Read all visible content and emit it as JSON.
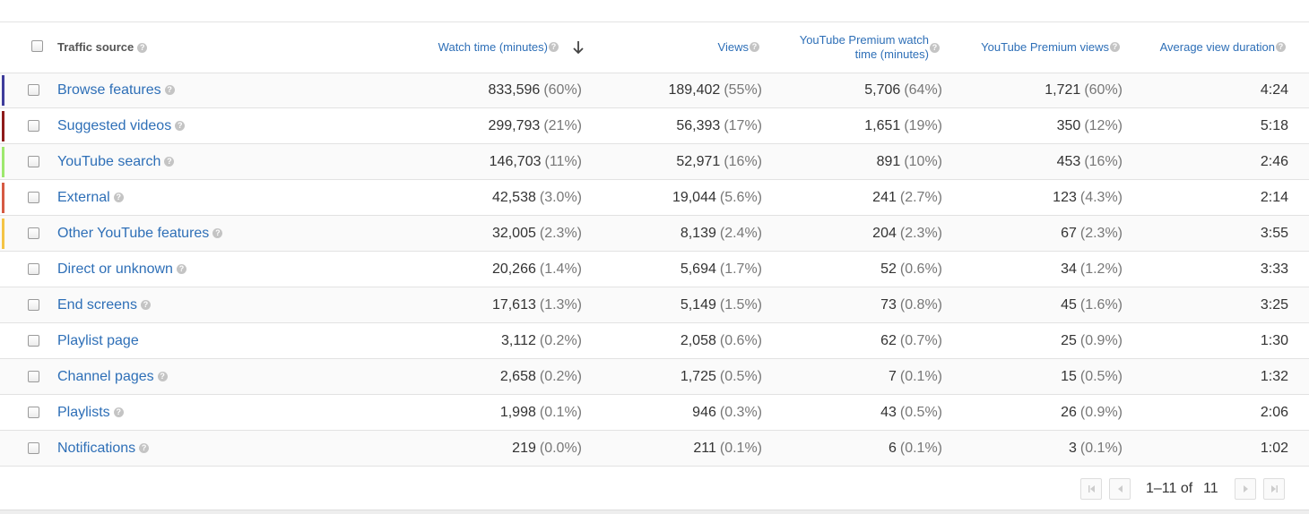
{
  "table": {
    "headers": {
      "source": "Traffic source",
      "columns": [
        [
          "Watch time (minutes)"
        ],
        [
          "Views"
        ],
        [
          "YouTube Premium watch",
          "time (minutes)"
        ],
        [
          "YouTube Premium views"
        ],
        [
          "Average view duration"
        ]
      ]
    },
    "rows": [
      {
        "source": "Browse features",
        "color": "#3e3c9b",
        "help": true,
        "cells": [
          [
            "833,596",
            "(60%)"
          ],
          [
            "189,402",
            "(55%)"
          ],
          [
            "5,706",
            "(64%)"
          ],
          [
            "1,721",
            "(60%)"
          ],
          [
            "4:24"
          ]
        ]
      },
      {
        "source": "Suggested videos",
        "color": "#8e1b1b",
        "help": true,
        "cells": [
          [
            "299,793",
            "(21%)"
          ],
          [
            "56,393",
            "(17%)"
          ],
          [
            "1,651",
            "(19%)"
          ],
          [
            "350",
            "(12%)"
          ],
          [
            "5:18"
          ]
        ]
      },
      {
        "source": "YouTube search",
        "color": "#9ee86e",
        "help": true,
        "cells": [
          [
            "146,703",
            "(11%)"
          ],
          [
            "52,971",
            "(16%)"
          ],
          [
            "891",
            "(10%)"
          ],
          [
            "453",
            "(16%)"
          ],
          [
            "2:46"
          ]
        ]
      },
      {
        "source": "External",
        "color": "#d65a43",
        "help": true,
        "cells": [
          [
            "42,538",
            "(3.0%)"
          ],
          [
            "19,044",
            "(5.6%)"
          ],
          [
            "241",
            "(2.7%)"
          ],
          [
            "123",
            "(4.3%)"
          ],
          [
            "2:14"
          ]
        ]
      },
      {
        "source": "Other YouTube features",
        "color": "#f4c445",
        "help": true,
        "cells": [
          [
            "32,005",
            "(2.3%)"
          ],
          [
            "8,139",
            "(2.4%)"
          ],
          [
            "204",
            "(2.3%)"
          ],
          [
            "67",
            "(2.3%)"
          ],
          [
            "3:55"
          ]
        ]
      },
      {
        "source": "Direct or unknown",
        "help": true,
        "cells": [
          [
            "20,266",
            "(1.4%)"
          ],
          [
            "5,694",
            "(1.7%)"
          ],
          [
            "52",
            "(0.6%)"
          ],
          [
            "34",
            "(1.2%)"
          ],
          [
            "3:33"
          ]
        ]
      },
      {
        "source": "End screens",
        "help": true,
        "cells": [
          [
            "17,613",
            "(1.3%)"
          ],
          [
            "5,149",
            "(1.5%)"
          ],
          [
            "73",
            "(0.8%)"
          ],
          [
            "45",
            "(1.6%)"
          ],
          [
            "3:25"
          ]
        ]
      },
      {
        "source": "Playlist page",
        "help": false,
        "cells": [
          [
            "3,112",
            "(0.2%)"
          ],
          [
            "2,058",
            "(0.6%)"
          ],
          [
            "62",
            "(0.7%)"
          ],
          [
            "25",
            "(0.9%)"
          ],
          [
            "1:30"
          ]
        ]
      },
      {
        "source": "Channel pages",
        "help": true,
        "cells": [
          [
            "2,658",
            "(0.2%)"
          ],
          [
            "1,725",
            "(0.5%)"
          ],
          [
            "7",
            "(0.1%)"
          ],
          [
            "15",
            "(0.5%)"
          ],
          [
            "1:32"
          ]
        ]
      },
      {
        "source": "Playlists",
        "help": true,
        "cells": [
          [
            "1,998",
            "(0.1%)"
          ],
          [
            "946",
            "(0.3%)"
          ],
          [
            "43",
            "(0.5%)"
          ],
          [
            "26",
            "(0.9%)"
          ],
          [
            "2:06"
          ]
        ]
      },
      {
        "source": "Notifications",
        "help": true,
        "cells": [
          [
            "219",
            "(0.0%)"
          ],
          [
            "211",
            "(0.1%)"
          ],
          [
            "6",
            "(0.1%)"
          ],
          [
            "3",
            "(0.1%)"
          ],
          [
            "1:02"
          ]
        ]
      }
    ]
  },
  "pagination": {
    "range": "1–11 of",
    "total": "11"
  }
}
